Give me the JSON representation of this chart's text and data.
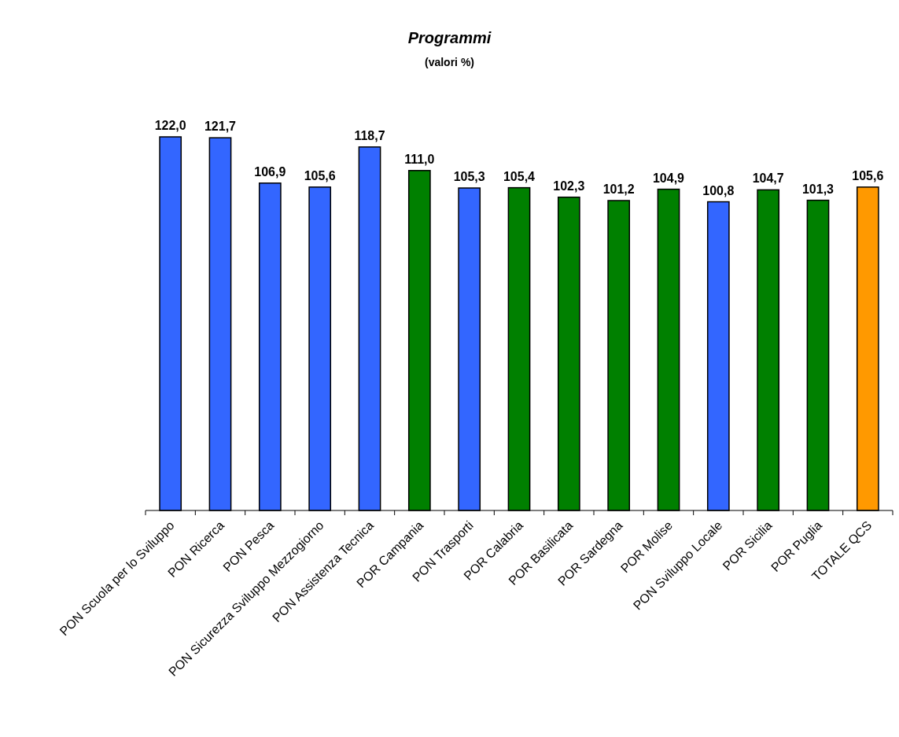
{
  "chart_data": {
    "type": "bar",
    "title": "Programmi",
    "subtitle": "(valori %)",
    "categories": [
      "PON Scuola per lo Sviluppo",
      "PON Ricerca",
      "PON Pesca",
      "PON Sicurezza Sviluppo Mezzogiorno",
      "PON Assistenza Tecnica",
      "POR Campania",
      "PON Trasporti",
      "POR Calabria",
      "POR Basilicata",
      "POR Sardegna",
      "POR Molise",
      "PON Sviluppo Locale",
      "POR Sicilia",
      "POR Puglia",
      "TOTALE QCS"
    ],
    "values": [
      122.0,
      121.7,
      106.9,
      105.6,
      118.7,
      111.0,
      105.3,
      105.4,
      102.3,
      101.2,
      104.9,
      100.8,
      104.7,
      101.3,
      105.6
    ],
    "value_labels": [
      "122,0",
      "121,7",
      "106,9",
      "105,6",
      "118,7",
      "111,0",
      "105,3",
      "105,4",
      "102,3",
      "101,2",
      "104,9",
      "100,8",
      "104,7",
      "101,3",
      "105,6"
    ],
    "colors": [
      "#3366ff",
      "#3366ff",
      "#3366ff",
      "#3366ff",
      "#3366ff",
      "#008000",
      "#3366ff",
      "#008000",
      "#008000",
      "#008000",
      "#008000",
      "#3366ff",
      "#008000",
      "#008000",
      "#ff9900"
    ],
    "tick_labels": "x"
  }
}
